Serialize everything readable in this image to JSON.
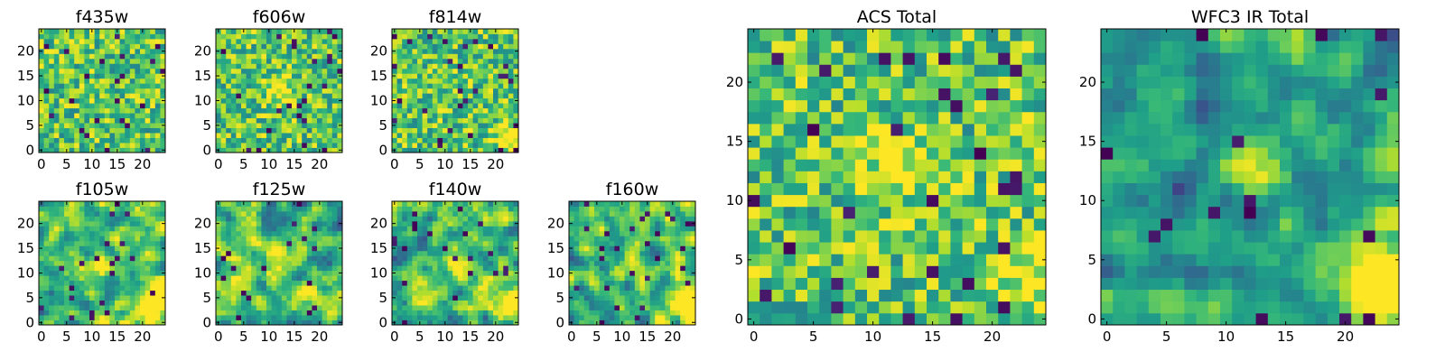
{
  "chart_data": {
    "type": "heatmap",
    "grid_size": 25,
    "value_range": [
      0,
      1
    ],
    "colormap": "viridis",
    "panels": [
      {
        "id": "f435w",
        "title": "f435w",
        "xticks": [
          0,
          5,
          10,
          15,
          20
        ],
        "yticks": [
          0,
          5,
          10,
          15,
          20
        ],
        "style": "noisy-bright",
        "seed": 11,
        "hotspots": []
      },
      {
        "id": "f606w",
        "title": "f606w",
        "xticks": [
          0,
          5,
          10,
          15,
          20
        ],
        "yticks": [
          0,
          5,
          10,
          15,
          20
        ],
        "style": "noisy-bright",
        "seed": 23,
        "hotspots": [
          {
            "x": 12,
            "y": 12,
            "amp": 0.35,
            "r": 2
          }
        ]
      },
      {
        "id": "f814w",
        "title": "f814w",
        "xticks": [
          0,
          5,
          10,
          15,
          20
        ],
        "yticks": [
          0,
          5,
          10,
          15,
          20
        ],
        "style": "noisy-bright",
        "seed": 37,
        "hotspots": [
          {
            "x": 23,
            "y": 3,
            "amp": 0.4,
            "r": 2
          }
        ]
      },
      {
        "id": "f105w",
        "title": "f105w",
        "xticks": [
          0,
          5,
          10,
          15,
          20
        ],
        "yticks": [
          0,
          5,
          10,
          15,
          20
        ],
        "style": "smooth-mid",
        "seed": 41,
        "hotspots": [
          {
            "x": 12,
            "y": 12,
            "amp": 0.3,
            "r": 2
          },
          {
            "x": 23,
            "y": 4,
            "amp": 0.45,
            "r": 3
          }
        ]
      },
      {
        "id": "f125w",
        "title": "f125w",
        "xticks": [
          0,
          5,
          10,
          15,
          20
        ],
        "yticks": [
          0,
          5,
          10,
          15,
          20
        ],
        "style": "smooth-mid",
        "seed": 53,
        "hotspots": [
          {
            "x": 12,
            "y": 12,
            "amp": 0.25,
            "r": 2
          },
          {
            "x": 23,
            "y": 4,
            "amp": 0.4,
            "r": 3
          }
        ]
      },
      {
        "id": "f140w",
        "title": "f140w",
        "xticks": [
          0,
          5,
          10,
          15,
          20
        ],
        "yticks": [
          0,
          5,
          10,
          15,
          20
        ],
        "style": "smooth-mid",
        "seed": 67,
        "hotspots": [
          {
            "x": 12,
            "y": 12,
            "amp": 0.25,
            "r": 2
          },
          {
            "x": 23,
            "y": 4,
            "amp": 0.45,
            "r": 3
          }
        ]
      },
      {
        "id": "f160w",
        "title": "f160w",
        "xticks": [
          0,
          5,
          10,
          15,
          20
        ],
        "yticks": [
          0,
          5,
          10,
          15,
          20
        ],
        "style": "smooth-mid",
        "seed": 79,
        "hotspots": [
          {
            "x": 12,
            "y": 12,
            "amp": 0.25,
            "r": 2
          },
          {
            "x": 23,
            "y": 3,
            "amp": 0.5,
            "r": 3
          }
        ]
      },
      {
        "id": "acs-total",
        "title": "ACS Total",
        "xticks": [
          0,
          5,
          10,
          15,
          20
        ],
        "yticks": [
          0,
          5,
          10,
          15,
          20
        ],
        "style": "noisy-bright",
        "seed": 97,
        "hotspots": [
          {
            "x": 12,
            "y": 13,
            "amp": 0.3,
            "r": 2
          },
          {
            "x": 23,
            "y": 4,
            "amp": 0.3,
            "r": 2
          }
        ]
      },
      {
        "id": "wfc3-ir-total",
        "title": "WFC3 IR Total",
        "xticks": [
          0,
          5,
          10,
          15,
          20
        ],
        "yticks": [
          0,
          5,
          10,
          15,
          20
        ],
        "style": "smooth-dark",
        "seed": 103,
        "hotspots": [
          {
            "x": 12,
            "y": 13,
            "amp": 0.35,
            "r": 2
          },
          {
            "x": 23,
            "y": 4,
            "amp": 0.6,
            "r": 3
          }
        ]
      }
    ]
  }
}
